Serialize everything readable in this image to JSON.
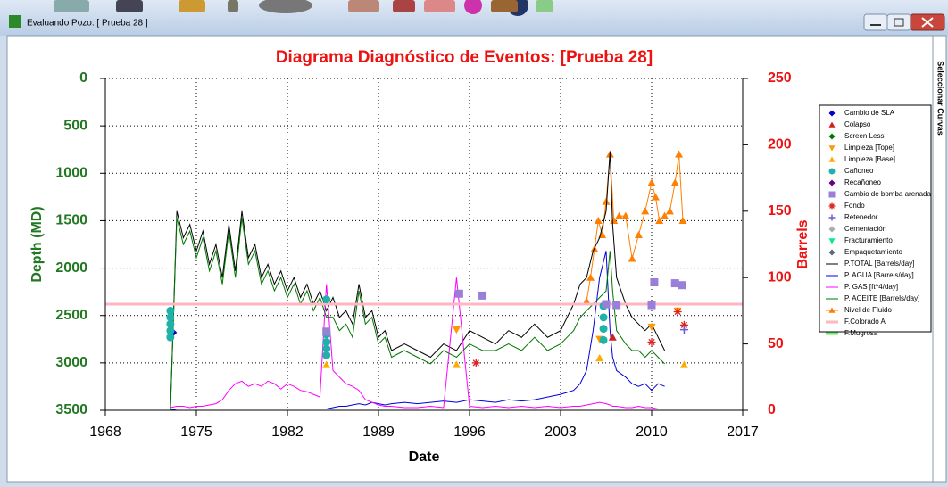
{
  "window": {
    "title": "Evaluando Pozo: [ Prueba 28 ]",
    "side_tab": "Seleccionar Curvas"
  },
  "chart_data": {
    "type": "line",
    "title": "Diagrama Diagnóstico de Eventos: [Prueba 28]",
    "xlabel": "Date",
    "ylabel": "Depth (MD)",
    "y2label": "Barrels",
    "xlim": [
      1968,
      2017
    ],
    "xticks": [
      1968,
      1975,
      1982,
      1989,
      1996,
      2003,
      2010,
      2017
    ],
    "ylim": [
      3500,
      0
    ],
    "yticks": [
      0,
      500,
      1000,
      1500,
      2000,
      2500,
      3000,
      3500
    ],
    "y2lim": [
      0,
      250
    ],
    "y2ticks": [
      0,
      50,
      100,
      150,
      200,
      250
    ],
    "grid": true,
    "legend": "right",
    "series": [
      {
        "name": "Cambio de SLA",
        "color": "#0000cc",
        "marker": "diamond",
        "x": [
          1973.2
        ],
        "values": [
          2680
        ]
      },
      {
        "name": "Colapso",
        "color": "#cc2222",
        "marker": "triangle-up",
        "x": [
          2007
        ],
        "values": [
          2730
        ]
      },
      {
        "name": "Screen Less",
        "color": "#007700",
        "marker": "diamond",
        "x": [],
        "values": []
      },
      {
        "name": "Limpieza [Tope]",
        "color": "#ff9900",
        "marker": "triangle-down",
        "x": [
          1985,
          1995,
          2006,
          2010,
          2012
        ],
        "values": [
          2700,
          2650,
          2750,
          2620,
          2450
        ]
      },
      {
        "name": "Limpieza [Base]",
        "color": "#ffaa00",
        "marker": "triangle-up",
        "x": [
          1985,
          1995,
          2006,
          2012.5
        ],
        "values": [
          3020,
          3020,
          2950,
          3020
        ]
      },
      {
        "name": "Cañoneo",
        "color": "#20b2aa",
        "marker": "circle",
        "x": [
          1973,
          1973,
          1973,
          1973,
          1973,
          1985,
          1985,
          1985,
          1985,
          1985,
          2006.3,
          2006.3,
          2006.3,
          2006.3
        ],
        "values": [
          2450,
          2520,
          2590,
          2660,
          2730,
          2330,
          2700,
          2780,
          2850,
          2920,
          2400,
          2520,
          2640,
          2760
        ]
      },
      {
        "name": "Recañoneo",
        "color": "#660088",
        "marker": "diamond",
        "x": [],
        "values": []
      },
      {
        "name": "Cambio de bomba arenada",
        "color": "#9a7fd8",
        "marker": "square",
        "x": [
          1985,
          1995.2,
          1997,
          2006.5,
          2007.3,
          2010,
          2010.2,
          2011.8,
          2012.3
        ],
        "values": [
          2670,
          2270,
          2290,
          2380,
          2390,
          2390,
          2150,
          2160,
          2180
        ]
      },
      {
        "name": "Fondo",
        "color": "#dd2222",
        "marker": "asterisk",
        "x": [
          1996.5,
          2010,
          2012,
          2012.5
        ],
        "values": [
          3000,
          2780,
          2460,
          2600
        ]
      },
      {
        "name": "Retenedor",
        "color": "#6a5acd",
        "marker": "plus",
        "x": [
          2012.5
        ],
        "values": [
          2650
        ]
      },
      {
        "name": "Cementación",
        "color": "#aaaaaa",
        "marker": "diamond",
        "x": [],
        "values": []
      },
      {
        "name": "Fracturamiento",
        "color": "#00ee88",
        "marker": "triangle-down",
        "x": [],
        "values": []
      },
      {
        "name": "Empaquetamiento",
        "color": "#5a6a80",
        "marker": "diamond",
        "x": [],
        "values": []
      },
      {
        "name": "P.TOTAL [Barrels/day]",
        "color": "#000000",
        "marker": "line",
        "axis": "y2",
        "x": [
          1973,
          1973.5,
          1974,
          1974.5,
          1975,
          1975.5,
          1976,
          1976.5,
          1977,
          1977.5,
          1978,
          1978.5,
          1979,
          1979.5,
          1980,
          1980.5,
          1981,
          1981.5,
          1982,
          1982.5,
          1983,
          1983.5,
          1984,
          1984.5,
          1985,
          1985.5,
          1986,
          1986.5,
          1987,
          1987.5,
          1988,
          1988.5,
          1989,
          1989.5,
          1990,
          1991,
          1992,
          1993,
          1994,
          1995,
          1996,
          1997,
          1998,
          1999,
          2000,
          2001,
          2002,
          2003,
          2004,
          2004.5,
          2005,
          2005.5,
          2006,
          2006.5,
          2006.8,
          2007,
          2007.3,
          2008,
          2008.5,
          2009,
          2009.5,
          2010,
          2010.5,
          2011
        ],
        "values": [
          0,
          150,
          130,
          140,
          120,
          135,
          110,
          125,
          100,
          140,
          105,
          150,
          115,
          125,
          100,
          110,
          95,
          105,
          90,
          100,
          85,
          95,
          80,
          90,
          75,
          85,
          70,
          75,
          65,
          95,
          70,
          75,
          55,
          60,
          45,
          50,
          45,
          40,
          50,
          45,
          60,
          55,
          50,
          60,
          55,
          65,
          55,
          60,
          80,
          95,
          100,
          120,
          130,
          150,
          195,
          140,
          100,
          80,
          70,
          65,
          60,
          65,
          55,
          45
        ]
      },
      {
        "name": "P. AGUA [Barrels/day]",
        "color": "#0000dd",
        "marker": "line",
        "axis": "y2",
        "x": [
          1973,
          1973.5,
          1974,
          1974.5,
          1975,
          1975.5,
          1976,
          1976.5,
          1977,
          1977.5,
          1978,
          1978.5,
          1979,
          1979.5,
          1980,
          1980.5,
          1981,
          1981.5,
          1982,
          1982.5,
          1983,
          1983.5,
          1984,
          1984.5,
          1985,
          1985.5,
          1986,
          1986.5,
          1987,
          1987.5,
          1988,
          1988.5,
          1989,
          1989.5,
          1990,
          1991,
          1992,
          1993,
          1994,
          1995,
          1996,
          1997,
          1998,
          1999,
          2000,
          2001,
          2002,
          2003,
          2004,
          2004.5,
          2005,
          2005.5,
          2006,
          2006.5,
          2006.8,
          2007,
          2007.3,
          2008,
          2008.5,
          2009,
          2009.5,
          2010,
          2010.5,
          2011
        ],
        "values": [
          0,
          1,
          1,
          1,
          1,
          1,
          1,
          1,
          1,
          1,
          1,
          1,
          1,
          1,
          1,
          1,
          1,
          1,
          1,
          1,
          1,
          1,
          1,
          1,
          1,
          2,
          3,
          3,
          4,
          5,
          4,
          6,
          5,
          4,
          5,
          6,
          5,
          6,
          7,
          6,
          8,
          7,
          6,
          8,
          7,
          8,
          10,
          12,
          15,
          20,
          30,
          60,
          100,
          120,
          60,
          40,
          30,
          25,
          20,
          18,
          20,
          15,
          20,
          18
        ]
      },
      {
        "name": "P. GAS [ft^4/day]",
        "color": "#ff00ff",
        "marker": "line",
        "axis": "y2",
        "x": [
          1973,
          1973.5,
          1974,
          1974.5,
          1975,
          1975.5,
          1976,
          1976.5,
          1977,
          1977.5,
          1978,
          1978.5,
          1979,
          1979.5,
          1980,
          1980.5,
          1981,
          1981.5,
          1982,
          1982.5,
          1983,
          1983.5,
          1984,
          1984.5,
          1985,
          1985.5,
          1986,
          1986.5,
          1987,
          1987.5,
          1988,
          1988.5,
          1989,
          1989.5,
          1990,
          1991,
          1992,
          1993,
          1994,
          1995,
          1996,
          1997,
          1998,
          1999,
          2000,
          2001,
          2002,
          2003,
          2004,
          2004.5,
          2005,
          2005.5,
          2006,
          2006.5,
          2006.8,
          2007,
          2007.3,
          2008,
          2008.5,
          2009,
          2009.5,
          2010,
          2010.5,
          2011
        ],
        "values": [
          2,
          3,
          3,
          2,
          3,
          3,
          4,
          5,
          8,
          15,
          20,
          22,
          18,
          20,
          18,
          22,
          20,
          16,
          20,
          18,
          15,
          14,
          12,
          10,
          95,
          30,
          25,
          20,
          18,
          15,
          8,
          6,
          4,
          3,
          3,
          2,
          2,
          3,
          2,
          100,
          3,
          2,
          3,
          2,
          3,
          2,
          3,
          2,
          3,
          3,
          4,
          5,
          6,
          5,
          4,
          3,
          3,
          2,
          2,
          3,
          2,
          2,
          1,
          1
        ]
      },
      {
        "name": "P. ACEITE [Barrels/day]",
        "color": "#007700",
        "marker": "line",
        "axis": "y2",
        "x": [
          1973,
          1973.5,
          1974,
          1974.5,
          1975,
          1975.5,
          1976,
          1976.5,
          1977,
          1977.5,
          1978,
          1978.5,
          1979,
          1979.5,
          1980,
          1980.5,
          1981,
          1981.5,
          1982,
          1982.5,
          1983,
          1983.5,
          1984,
          1984.5,
          1985,
          1985.5,
          1986,
          1986.5,
          1987,
          1987.5,
          1988,
          1988.5,
          1989,
          1989.5,
          1990,
          1991,
          1992,
          1993,
          1994,
          1995,
          1996,
          1997,
          1998,
          1999,
          2000,
          2001,
          2002,
          2003,
          2004,
          2004.5,
          2005,
          2005.5,
          2006,
          2006.5,
          2006.8,
          2007,
          2007.3,
          2008,
          2008.5,
          2009,
          2009.5,
          2010,
          2010.5,
          2011
        ],
        "values": [
          0,
          145,
          125,
          135,
          115,
          130,
          105,
          120,
          95,
          135,
          100,
          145,
          110,
          120,
          95,
          105,
          90,
          100,
          85,
          95,
          80,
          90,
          75,
          85,
          70,
          70,
          60,
          65,
          55,
          90,
          65,
          70,
          50,
          55,
          40,
          45,
          40,
          35,
          45,
          40,
          50,
          45,
          45,
          50,
          45,
          55,
          45,
          50,
          60,
          70,
          75,
          80,
          85,
          90,
          120,
          90,
          60,
          50,
          45,
          45,
          40,
          45,
          40,
          35
        ]
      },
      {
        "name": "Nivel de Fluido",
        "color": "#ff7f00",
        "marker": "line-triangle",
        "x": [
          2005,
          2005.3,
          2005.6,
          2005.9,
          2006.2,
          2006.5,
          2006.8,
          2007.1,
          2007.5,
          2008,
          2008.5,
          2009,
          2009.5,
          2010,
          2010.3,
          2010.6,
          2011,
          2011.4,
          2011.8,
          2012.1,
          2012.4
        ],
        "values": [
          2350,
          2100,
          1800,
          1500,
          1650,
          1300,
          800,
          1500,
          1450,
          1450,
          1900,
          1650,
          1400,
          1100,
          1250,
          1500,
          1450,
          1400,
          1100,
          800,
          1500
        ]
      },
      {
        "name": "F.Colorado A",
        "color": "#ffb6c1",
        "marker": "hline",
        "values": [
          2380
        ]
      },
      {
        "name": "F.Mugrosa",
        "color": "#66ee66",
        "marker": "hline",
        "values": []
      }
    ]
  }
}
